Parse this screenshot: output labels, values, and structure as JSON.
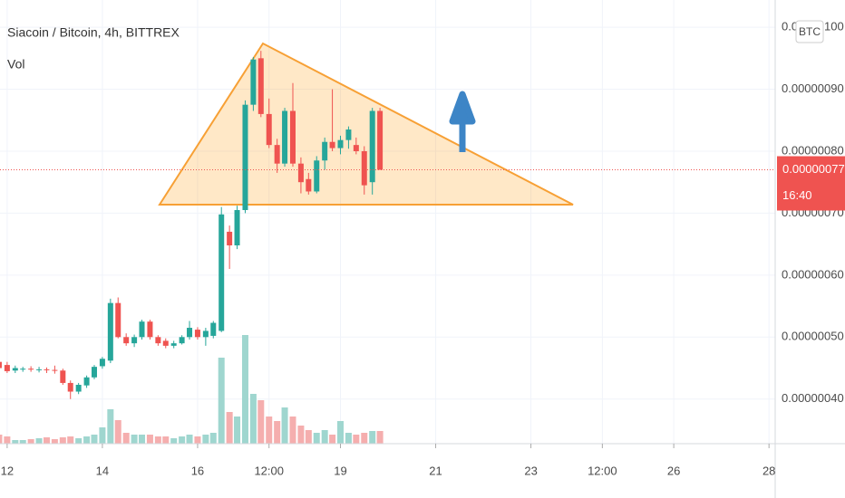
{
  "chart_data": {
    "type": "candlestick",
    "title": "Siacoin / Bitcoin, 4h, BITTREX",
    "volume_label": "Vol",
    "currency": "BTC",
    "x": [
      11.83,
      12,
      12.17,
      12.33,
      12.5,
      12.67,
      12.83,
      13,
      13.17,
      13.33,
      13.5,
      13.67,
      13.83,
      14,
      14.17,
      14.33,
      14.5,
      14.67,
      14.83,
      15,
      15.17,
      15.33,
      15.5,
      15.67,
      15.83,
      16,
      16.17,
      16.33,
      16.5,
      16.67,
      16.83,
      17,
      17.17,
      17.33,
      17.5,
      17.67,
      17.83,
      18,
      18.17,
      18.33,
      18.5,
      18.67,
      18.83,
      19,
      19.17,
      19.33,
      19.5,
      19.67,
      19.83
    ],
    "open": [
      4.6e-07,
      4.55e-07,
      4.46e-07,
      4.48e-07,
      4.49e-07,
      4.48e-07,
      4.48e-07,
      4.47e-07,
      4.46e-07,
      4.26e-07,
      4.12e-07,
      4.22e-07,
      4.35e-07,
      4.53e-07,
      4.62e-07,
      5.55e-07,
      5e-07,
      4.9e-07,
      5e-07,
      5.25e-07,
      5e-07,
      4.94e-07,
      4.86e-07,
      4.9e-07,
      5e-07,
      5.12e-07,
      5e-07,
      5.02e-07,
      5.1e-07,
      6.7e-07,
      6.48e-07,
      7.05e-07,
      8.75e-07,
      9.5e-07,
      8.6e-07,
      8.1e-07,
      7.8e-07,
      8.65e-07,
      7.8e-07,
      7.55e-07,
      7.35e-07,
      7.85e-07,
      8.15e-07,
      8.05e-07,
      8.18e-07,
      8.1e-07,
      8e-07,
      7.5e-07,
      8.65e-07
    ],
    "high": [
      4.7e-07,
      4.6e-07,
      4.54e-07,
      4.52e-07,
      4.53e-07,
      4.52e-07,
      4.51e-07,
      4.54e-07,
      4.49e-07,
      4.3e-07,
      4.26e-07,
      4.38e-07,
      4.55e-07,
      4.68e-07,
      5.62e-07,
      5.64e-07,
      5.06e-07,
      5.04e-07,
      5.28e-07,
      5.28e-07,
      5.03e-07,
      4.98e-07,
      4.94e-07,
      5.03e-07,
      5.26e-07,
      5.16e-07,
      5.15e-07,
      5.26e-07,
      7.1e-07,
      6.8e-07,
      7.12e-07,
      8.82e-07,
      9.52e-07,
      9.62e-07,
      8.85e-07,
      8.2e-07,
      8.7e-07,
      9.1e-07,
      7.9e-07,
      7.65e-07,
      7.92e-07,
      8.22e-07,
      9e-07,
      8.25e-07,
      8.4e-07,
      8.22e-07,
      8.08e-07,
      8.7e-07,
      8.7e-07
    ],
    "low": [
      4.45e-07,
      4.42e-07,
      4.42e-07,
      4.44e-07,
      4.44e-07,
      4.43e-07,
      4.42e-07,
      4.41e-07,
      4.23e-07,
      4e-07,
      4.08e-07,
      4.18e-07,
      4.32e-07,
      4.49e-07,
      4.58e-07,
      4.98e-07,
      4.86e-07,
      4.84e-07,
      4.96e-07,
      4.96e-07,
      4.86e-07,
      4.82e-07,
      4.82e-07,
      4.88e-07,
      4.96e-07,
      4.96e-07,
      4.86e-07,
      4.98e-07,
      5.08e-07,
      6.1e-07,
      6.42e-07,
      7e-07,
      8.65e-07,
      8.55e-07,
      8.05e-07,
      7.65e-07,
      7.75e-07,
      7.75e-07,
      7.32e-07,
      7.3e-07,
      7.32e-07,
      7.7e-07,
      8e-07,
      7.95e-07,
      8.04e-07,
      7.95e-07,
      7.3e-07,
      7.3e-07,
      7.7e-07
    ],
    "close": [
      4.5e-07,
      4.45e-07,
      4.5e-07,
      4.49e-07,
      4.48e-07,
      4.48e-07,
      4.47e-07,
      4.46e-07,
      4.26e-07,
      4.12e-07,
      4.23e-07,
      4.35e-07,
      4.52e-07,
      4.65e-07,
      5.55e-07,
      5e-07,
      4.9e-07,
      5e-07,
      5.25e-07,
      5e-07,
      4.9e-07,
      4.86e-07,
      4.9e-07,
      5e-07,
      5.15e-07,
      5e-07,
      5.1e-07,
      5.23e-07,
      6.98e-07,
      6.48e-07,
      7.05e-07,
      8.75e-07,
      9.48e-07,
      8.6e-07,
      8.1e-07,
      7.8e-07,
      8.65e-07,
      7.8e-07,
      7.5e-07,
      7.35e-07,
      7.85e-07,
      8.15e-07,
      8.05e-07,
      8.18e-07,
      8.35e-07,
      8e-07,
      7.45e-07,
      8.65e-07,
      7.7e-07
    ],
    "volume": [
      10,
      8,
      4,
      4,
      5,
      6,
      7,
      5,
      7,
      8,
      6,
      8,
      10,
      18,
      38,
      26,
      12,
      10,
      10,
      10,
      8,
      8,
      6,
      8,
      10,
      8,
      10,
      12,
      95,
      35,
      30,
      120,
      55,
      48,
      30,
      25,
      40,
      30,
      20,
      15,
      12,
      15,
      10,
      25,
      12,
      10,
      12,
      14,
      14
    ],
    "up_color": "#26a69a",
    "down_color": "#ef5350",
    "volume_up_color": "#9fd6cf",
    "volume_down_color": "#f5aeae",
    "xlim": [
      11.85,
      28.13
    ],
    "ylim": [
      3.28e-07,
      1.044e-06
    ],
    "xticks": [
      12,
      14,
      16,
      {
        "value": 17.5,
        "label": "12:00"
      },
      19,
      21,
      23,
      {
        "value": 24.5,
        "label": "12:00"
      },
      26,
      28
    ],
    "yticks": [
      {
        "value": 4e-07,
        "label": "0.00000040"
      },
      {
        "value": 5e-07,
        "label": "0.00000050"
      },
      {
        "value": 6e-07,
        "label": "0.00000060"
      },
      {
        "value": 7e-07,
        "label": "0.00000070"
      },
      {
        "value": 8e-07,
        "label": "0.00000080"
      },
      {
        "value": 9e-07,
        "label": "0.00000090"
      },
      {
        "value": 1e-06,
        "label": "0.00000100"
      }
    ],
    "grid": true,
    "last_price": {
      "value": 7.7e-07,
      "label": "0.00000077"
    },
    "countdown": "16:40"
  }
}
